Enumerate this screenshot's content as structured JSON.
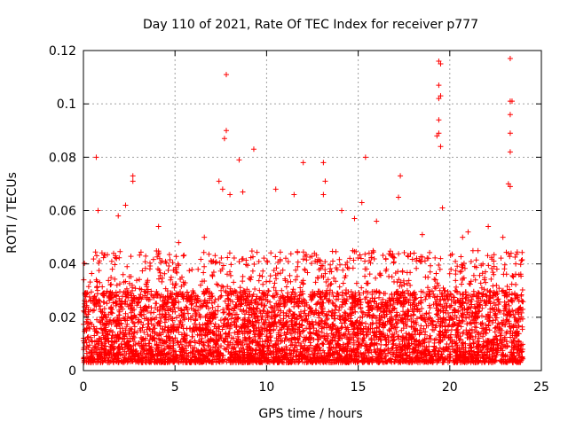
{
  "chart_data": {
    "type": "scatter",
    "title": "Day 110 of 2021, Rate Of TEC Index for receiver p777",
    "xlabel": "GPS time / hours",
    "ylabel": "ROTI / TECUs",
    "xlim": [
      0,
      25
    ],
    "ylim": [
      0,
      0.12
    ],
    "xticks": [
      0,
      5,
      10,
      15,
      20,
      25
    ],
    "yticks": [
      0,
      0.02,
      0.04,
      0.06,
      0.08,
      0.1,
      0.12
    ],
    "xtick_labels": [
      "0",
      "5",
      "10",
      "15",
      "20",
      "25"
    ],
    "ytick_labels": [
      "0",
      "0.02",
      "0.04",
      "0.06",
      "0.08",
      "0.1",
      "0.12"
    ],
    "grid": true,
    "marker": "+",
    "marker_color": "#ff0000",
    "series": [
      {
        "name": "ROTI",
        "color": "#ff0000",
        "points": [
          [
            0.7,
            0.08
          ],
          [
            2.7,
            0.073
          ],
          [
            2.7,
            0.071
          ],
          [
            7.8,
            0.111
          ],
          [
            7.8,
            0.09
          ],
          [
            7.7,
            0.087
          ],
          [
            8.5,
            0.079
          ],
          [
            9.3,
            0.083
          ],
          [
            12.0,
            0.078
          ],
          [
            13.1,
            0.078
          ],
          [
            15.4,
            0.08
          ],
          [
            17.3,
            0.073
          ],
          [
            19.4,
            0.116
          ],
          [
            19.5,
            0.115
          ],
          [
            19.4,
            0.107
          ],
          [
            19.4,
            0.102
          ],
          [
            19.5,
            0.103
          ],
          [
            19.4,
            0.094
          ],
          [
            19.3,
            0.088
          ],
          [
            19.4,
            0.089
          ],
          [
            19.5,
            0.084
          ],
          [
            23.3,
            0.117
          ],
          [
            23.3,
            0.101
          ],
          [
            23.4,
            0.101
          ],
          [
            23.3,
            0.096
          ],
          [
            23.3,
            0.089
          ],
          [
            23.3,
            0.082
          ],
          [
            23.2,
            0.07
          ],
          [
            23.3,
            0.069
          ],
          [
            13.2,
            0.071
          ],
          [
            13.1,
            0.066
          ],
          [
            7.4,
            0.071
          ],
          [
            7.6,
            0.068
          ],
          [
            8.0,
            0.066
          ],
          [
            8.7,
            0.067
          ],
          [
            10.5,
            0.068
          ],
          [
            15.2,
            0.063
          ],
          [
            17.2,
            0.065
          ],
          [
            19.6,
            0.061
          ],
          [
            20.7,
            0.05
          ],
          [
            22.1,
            0.054
          ],
          [
            22.9,
            0.05
          ],
          [
            23.6,
            0.04
          ],
          [
            2.3,
            0.062
          ],
          [
            1.9,
            0.058
          ],
          [
            0.8,
            0.06
          ],
          [
            4.1,
            0.054
          ],
          [
            5.2,
            0.048
          ],
          [
            6.6,
            0.05
          ],
          [
            11.5,
            0.066
          ],
          [
            14.1,
            0.06
          ],
          [
            14.8,
            0.057
          ],
          [
            16.0,
            0.056
          ],
          [
            18.5,
            0.051
          ],
          [
            21.0,
            0.052
          ]
        ]
      }
    ],
    "background_band": {
      "x_start": 0,
      "x_end": 24,
      "y_low": 0.003,
      "y_high": 0.03
    }
  }
}
